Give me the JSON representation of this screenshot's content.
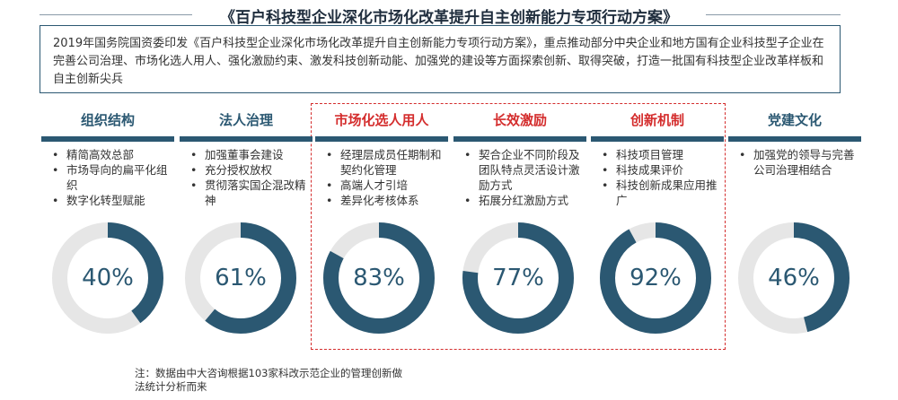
{
  "title": "《百户科技型企业深化市场化改革提升自主创新能力专项行动方案》",
  "intro": "2019年国务院国资委印发《百户科技型企业深化市场化改革提升自主创新能力专项行动方案》，重点推动部分中央企业和地方国有企业科技型子企业在完善公司治理、市场化选人用人、强化激励约束、激发科技创新动能、加强党的建设等方面探索创新、取得突破，打造一批国有科技型企业改革样板和自主创新尖兵",
  "colors": {
    "primary": "#2b5872",
    "highlight": "#d42d2d",
    "track": "#e6e6e6"
  },
  "chart_data": {
    "type": "donut",
    "categories": [
      "组织结构",
      "法人治理",
      "市场化选人用人",
      "长效激励",
      "创新机制",
      "党建文化"
    ],
    "values": [
      40,
      61,
      83,
      77,
      92,
      46
    ],
    "unit": "%",
    "highlighted": [
      "市场化选人用人",
      "长效激励",
      "创新机制"
    ]
  },
  "columns": [
    {
      "title": "组织结构",
      "items": [
        "精简高效总部",
        "市场导向的扁平化组织",
        "数字化转型赋能"
      ],
      "pct": "40%"
    },
    {
      "title": "法人治理",
      "items": [
        "加强董事会建设",
        "充分授权放权",
        "贯彻落实国企混改精神"
      ],
      "pct": "61%"
    },
    {
      "title": "市场化选人用人",
      "items": [
        "经理层成员任期制和契约化管理",
        "高端人才引培",
        "差异化考核体系"
      ],
      "pct": "83%"
    },
    {
      "title": "长效激励",
      "items": [
        "契合企业不同阶段及团队特点灵活设计激励方式",
        "拓展分红激励方式"
      ],
      "pct": "77%"
    },
    {
      "title": "创新机制",
      "items": [
        "科技项目管理",
        "科技成果评价",
        "科技创新成果应用推广"
      ],
      "pct": "92%"
    },
    {
      "title": "党建文化",
      "items": [
        "加强党的领导与完善公司治理相结合"
      ],
      "pct": "46%"
    }
  ],
  "note": "注：数据由中大咨询根据103家科改示范企业的管理创新做法统计分析而来"
}
